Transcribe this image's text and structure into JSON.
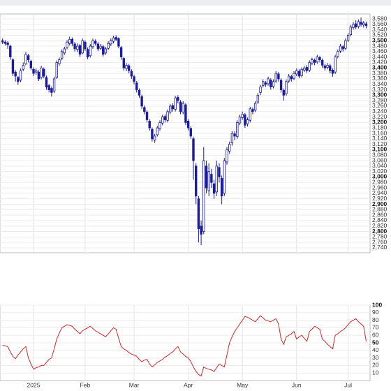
{
  "chart_data": [
    {
      "type": "candlestick",
      "color": "#1c1c96",
      "xlim": [
        -1,
        142.5
      ],
      "ylim": [
        2722,
        3598
      ],
      "grid": true,
      "xticks": [
        {
          "value": 12,
          "label": "2025"
        },
        {
          "value": 32,
          "label": "Feb"
        },
        {
          "value": 51,
          "label": "Mar"
        },
        {
          "value": 72,
          "label": "Apr"
        },
        {
          "value": 93,
          "label": "May"
        },
        {
          "value": 114,
          "label": "Jun"
        },
        {
          "value": 134,
          "label": "Jul"
        }
      ],
      "yticks": [
        {
          "value": 2740,
          "label": "2,740"
        },
        {
          "value": 2760,
          "label": "2,760"
        },
        {
          "value": 2780,
          "label": "2,780"
        },
        {
          "value": 2800,
          "label": "2,800"
        },
        {
          "value": 2820,
          "label": "2,820"
        },
        {
          "value": 2840,
          "label": "2,840"
        },
        {
          "value": 2860,
          "label": "2,860"
        },
        {
          "value": 2880,
          "label": "2,880"
        },
        {
          "value": 2900,
          "label": "2,900"
        },
        {
          "value": 2920,
          "label": "2,920"
        },
        {
          "value": 2940,
          "label": "2,940"
        },
        {
          "value": 2960,
          "label": "2,960"
        },
        {
          "value": 2980,
          "label": "2,980"
        },
        {
          "value": 3000,
          "label": "3,000"
        },
        {
          "value": 3020,
          "label": "3,020"
        },
        {
          "value": 3040,
          "label": "3,040"
        },
        {
          "value": 3060,
          "label": "3,060"
        },
        {
          "value": 3080,
          "label": "3,080"
        },
        {
          "value": 3100,
          "label": "3,100"
        },
        {
          "value": 3120,
          "label": "3,120"
        },
        {
          "value": 3140,
          "label": "3,140"
        },
        {
          "value": 3160,
          "label": "3,160"
        },
        {
          "value": 3180,
          "label": "3,180"
        },
        {
          "value": 3200,
          "label": "3,200"
        },
        {
          "value": 3220,
          "label": "3,220"
        },
        {
          "value": 3240,
          "label": "3,240"
        },
        {
          "value": 3260,
          "label": "3,260"
        },
        {
          "value": 3280,
          "label": "3,280"
        },
        {
          "value": 3300,
          "label": "3,300"
        },
        {
          "value": 3320,
          "label": "3,320"
        },
        {
          "value": 3340,
          "label": "3,340"
        },
        {
          "value": 3360,
          "label": "3,360"
        },
        {
          "value": 3380,
          "label": "3,380"
        },
        {
          "value": 3400,
          "label": "3,400"
        },
        {
          "value": 3420,
          "label": "3,420"
        },
        {
          "value": 3440,
          "label": "3,440"
        },
        {
          "value": 3460,
          "label": "3,460"
        },
        {
          "value": 3480,
          "label": "3,480"
        },
        {
          "value": 3500,
          "label": "3,500"
        },
        {
          "value": 3520,
          "label": "3,520"
        },
        {
          "value": 3540,
          "label": "3,540"
        },
        {
          "value": 3560,
          "label": "3,560"
        },
        {
          "value": 3580,
          "label": "3,580"
        }
      ],
      "open": [
        3500,
        3495,
        3492,
        3480,
        3430,
        3385,
        3365,
        3355,
        3395,
        3415,
        3445,
        3425,
        3395,
        3385,
        3385,
        3365,
        3395,
        3365,
        3335,
        3325,
        3315,
        3365,
        3415,
        3435,
        3455,
        3475,
        3490,
        3505,
        3488,
        3468,
        3482,
        3455,
        3495,
        3468,
        3445,
        3478,
        3498,
        3488,
        3472,
        3478,
        3455,
        3472,
        3488,
        3498,
        3512,
        3508,
        3475,
        3435,
        3398,
        3408,
        3388,
        3368,
        3345,
        3318,
        3295,
        3255,
        3238,
        3205,
        3175,
        3135,
        3155,
        3178,
        3198,
        3222,
        3208,
        3238,
        3262,
        3248,
        3292,
        3275,
        3238,
        3265,
        3205,
        3178,
        3140,
        3040,
        2920,
        2820,
        2800,
        3040,
        2950,
        3010,
        2975,
        2945,
        3035,
        2995,
        2940,
        3055,
        3095,
        3125,
        3158,
        3148,
        3198,
        3218,
        3228,
        3195,
        3208,
        3248,
        3245,
        3275,
        3310,
        3335,
        3345,
        3342,
        3355,
        3332,
        3352,
        3378,
        3355,
        3318,
        3305,
        3352,
        3368,
        3362,
        3378,
        3388,
        3372,
        3392,
        3402,
        3392,
        3418,
        3428,
        3422,
        3438,
        3428,
        3408,
        3402,
        3408,
        3392,
        3385,
        3442,
        3462,
        3478,
        3472,
        3502,
        3522,
        3548,
        3562,
        3552,
        3568,
        3558,
        3562
      ],
      "high": [
        3508,
        3502,
        3498,
        3485,
        3435,
        3392,
        3370,
        3398,
        3420,
        3458,
        3452,
        3430,
        3402,
        3398,
        3392,
        3408,
        3402,
        3372,
        3342,
        3332,
        3368,
        3428,
        3438,
        3468,
        3478,
        3502,
        3515,
        3512,
        3495,
        3490,
        3488,
        3508,
        3502,
        3475,
        3488,
        3508,
        3505,
        3495,
        3488,
        3485,
        3478,
        3498,
        3508,
        3518,
        3520,
        3512,
        3480,
        3440,
        3418,
        3415,
        3395,
        3375,
        3352,
        3325,
        3302,
        3262,
        3245,
        3212,
        3182,
        3158,
        3188,
        3208,
        3228,
        3230,
        3248,
        3268,
        3270,
        3298,
        3300,
        3282,
        3278,
        3270,
        3212,
        3185,
        3148,
        3050,
        2930,
        2840,
        3110,
        3060,
        3050,
        3030,
        2990,
        3060,
        3050,
        3005,
        3070,
        3110,
        3130,
        3168,
        3168,
        3208,
        3228,
        3240,
        3235,
        3218,
        3258,
        3255,
        3278,
        3308,
        3338,
        3358,
        3352,
        3368,
        3362,
        3358,
        3388,
        3385,
        3362,
        3325,
        3358,
        3378,
        3375,
        3388,
        3398,
        3395,
        3402,
        3408,
        3410,
        3428,
        3438,
        3435,
        3448,
        3445,
        3435,
        3415,
        3418,
        3415,
        3398,
        3448,
        3468,
        3488,
        3485,
        3508,
        3528,
        3558,
        3568,
        3575,
        3578,
        3585,
        3572,
        3570
      ],
      "low": [
        3488,
        3482,
        3470,
        3430,
        3370,
        3350,
        3338,
        3348,
        3388,
        3410,
        3420,
        3392,
        3370,
        3375,
        3352,
        3358,
        3362,
        3320,
        3310,
        3295,
        3308,
        3360,
        3408,
        3428,
        3448,
        3468,
        3482,
        3480,
        3460,
        3458,
        3440,
        3450,
        3462,
        3432,
        3438,
        3470,
        3482,
        3462,
        3465,
        3442,
        3448,
        3465,
        3480,
        3490,
        3498,
        3472,
        3430,
        3390,
        3388,
        3380,
        3360,
        3340,
        3310,
        3290,
        3250,
        3230,
        3200,
        3170,
        3130,
        3125,
        3148,
        3170,
        3190,
        3200,
        3200,
        3230,
        3240,
        3240,
        3270,
        3230,
        3230,
        3190,
        3170,
        3140,
        2990,
        2900,
        2760,
        2750,
        2790,
        2940,
        2930,
        2960,
        2920,
        2930,
        2980,
        2900,
        2930,
        3045,
        3085,
        3115,
        3135,
        3140,
        3190,
        3210,
        3180,
        3185,
        3200,
        3230,
        3238,
        3268,
        3300,
        3328,
        3330,
        3335,
        3320,
        3325,
        3345,
        3350,
        3310,
        3280,
        3298,
        3345,
        3350,
        3355,
        3370,
        3362,
        3365,
        3385,
        3382,
        3385,
        3410,
        3410,
        3415,
        3420,
        3400,
        3390,
        3395,
        3380,
        3368,
        3378,
        3435,
        3455,
        3460,
        3465,
        3495,
        3515,
        3540,
        3542,
        3545,
        3552,
        3548,
        3545
      ],
      "close": [
        3495,
        3490,
        3485,
        3440,
        3380,
        3370,
        3350,
        3390,
        3410,
        3450,
        3430,
        3400,
        3380,
        3390,
        3360,
        3400,
        3370,
        3330,
        3320,
        3310,
        3360,
        3420,
        3430,
        3460,
        3470,
        3495,
        3505,
        3490,
        3470,
        3480,
        3450,
        3500,
        3470,
        3440,
        3480,
        3500,
        3490,
        3470,
        3480,
        3450,
        3470,
        3490,
        3500,
        3510,
        3505,
        3480,
        3440,
        3400,
        3410,
        3390,
        3370,
        3350,
        3320,
        3300,
        3260,
        3240,
        3210,
        3180,
        3140,
        3150,
        3180,
        3200,
        3220,
        3210,
        3240,
        3260,
        3250,
        3290,
        3280,
        3240,
        3270,
        3200,
        3180,
        3150,
        3060,
        2930,
        2810,
        2790,
        3060,
        2960,
        3020,
        2980,
        2940,
        3040,
        3000,
        2930,
        3060,
        3100,
        3120,
        3160,
        3150,
        3200,
        3220,
        3230,
        3190,
        3210,
        3250,
        3240,
        3270,
        3300,
        3330,
        3350,
        3340,
        3360,
        3330,
        3350,
        3380,
        3360,
        3320,
        3300,
        3350,
        3370,
        3360,
        3380,
        3390,
        3370,
        3395,
        3400,
        3390,
        3420,
        3430,
        3420,
        3440,
        3430,
        3410,
        3400,
        3410,
        3390,
        3380,
        3440,
        3460,
        3480,
        3470,
        3500,
        3520,
        3550,
        3560,
        3550,
        3570,
        3560,
        3565,
        3555
      ]
    },
    {
      "type": "line",
      "color": "#cc2a2a",
      "ylim": [
        0,
        100
      ],
      "yticks": [
        10,
        20,
        30,
        40,
        50,
        60,
        70,
        80,
        90,
        100
      ],
      "grid": true,
      "values": [
        47,
        46,
        45,
        38,
        32,
        29,
        34,
        38,
        42,
        45,
        30,
        22,
        15,
        17,
        18,
        20,
        20,
        24,
        28,
        30,
        42,
        55,
        63,
        70,
        72,
        74,
        73,
        72,
        68,
        65,
        62,
        66,
        68,
        70,
        72,
        69,
        66,
        64,
        62,
        60,
        58,
        62,
        66,
        70,
        68,
        56,
        45,
        42,
        40,
        37,
        35,
        34,
        32,
        28,
        25,
        27,
        28,
        22,
        18,
        21,
        24,
        26,
        28,
        31,
        33,
        36,
        38,
        42,
        45,
        38,
        35,
        32,
        30,
        25,
        18,
        12,
        8,
        6,
        18,
        16,
        15,
        14,
        12,
        17,
        22,
        20,
        18,
        34,
        50,
        58,
        65,
        70,
        75,
        80,
        85,
        84,
        82,
        80,
        78,
        82,
        86,
        83,
        80,
        79,
        78,
        80,
        82,
        75,
        55,
        48,
        58,
        60,
        62,
        65,
        55,
        58,
        60,
        56,
        52,
        65,
        68,
        72,
        70,
        68,
        55,
        52,
        48,
        45,
        42,
        60,
        62,
        65,
        67,
        70,
        74,
        78,
        80,
        82,
        78,
        75,
        72,
        52
      ]
    }
  ]
}
